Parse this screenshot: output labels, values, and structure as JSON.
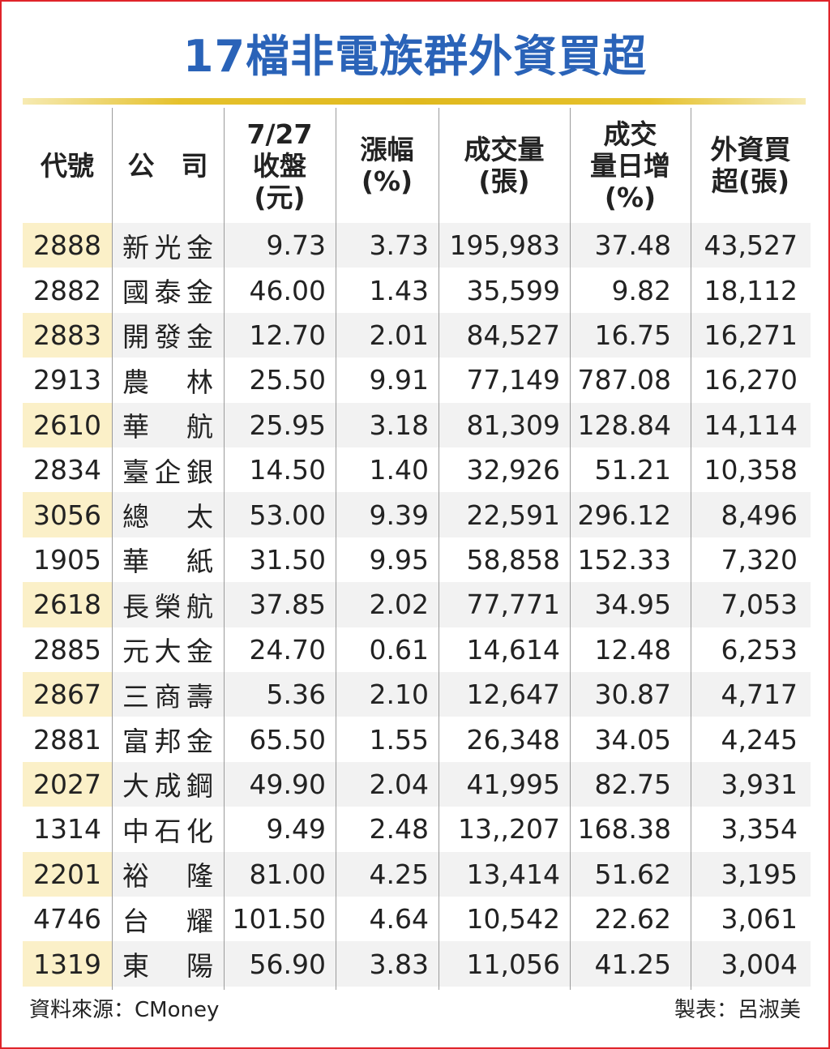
{
  "title": "17檔非電族群外資買超",
  "headers": [
    "代號",
    "公　司",
    "7/27\n收盤\n(元)",
    "漲幅\n(%)",
    "成交量\n(張)",
    "成交\n量日增\n(%)",
    "外資買\n超(張)"
  ],
  "rows": [
    [
      "2888",
      "新光金",
      "9.73",
      "3.73",
      "195,983",
      "37.48",
      "43,527"
    ],
    [
      "2882",
      "國泰金",
      "46.00",
      "1.43",
      "35,599",
      "9.82",
      "18,112"
    ],
    [
      "2883",
      "開發金",
      "12.70",
      "2.01",
      "84,527",
      "16.75",
      "16,271"
    ],
    [
      "2913",
      "農林",
      "25.50",
      "9.91",
      "77,149",
      "787.08",
      "16,270"
    ],
    [
      "2610",
      "華航",
      "25.95",
      "3.18",
      "81,309",
      "128.84",
      "14,114"
    ],
    [
      "2834",
      "臺企銀",
      "14.50",
      "1.40",
      "32,926",
      "51.21",
      "10,358"
    ],
    [
      "3056",
      "總太",
      "53.00",
      "9.39",
      "22,591",
      "296.12",
      "8,496"
    ],
    [
      "1905",
      "華紙",
      "31.50",
      "9.95",
      "58,858",
      "152.33",
      "7,320"
    ],
    [
      "2618",
      "長榮航",
      "37.85",
      "2.02",
      "77,771",
      "34.95",
      "7,053"
    ],
    [
      "2885",
      "元大金",
      "24.70",
      "0.61",
      "14,614",
      "12.48",
      "6,253"
    ],
    [
      "2867",
      "三商壽",
      "5.36",
      "2.10",
      "12,647",
      "30.87",
      "4,717"
    ],
    [
      "2881",
      "富邦金",
      "65.50",
      "1.55",
      "26,348",
      "34.05",
      "4,245"
    ],
    [
      "2027",
      "大成鋼",
      "49.90",
      "2.04",
      "41,995",
      "82.75",
      "3,931"
    ],
    [
      "1314",
      "中石化",
      "9.49",
      "2.48",
      "13,,207",
      "168.38",
      "3,354"
    ],
    [
      "2201",
      "裕隆",
      "81.00",
      "4.25",
      "13,414",
      "51.62",
      "3,195"
    ],
    [
      "4746",
      "台耀",
      "101.50",
      "4.64",
      "10,542",
      "22.62",
      "3,061"
    ],
    [
      "1319",
      "東陽",
      "56.90",
      "3.83",
      "11,056",
      "41.25",
      "3,004"
    ]
  ],
  "footer": {
    "source": "資料來源：CMoney",
    "author": "製表：呂淑美"
  },
  "colors": {
    "title": "#2a63b8",
    "border": "#e0242a",
    "gold_rule": "#e0b91e",
    "code_highlight": "#fbf0c8",
    "row_shade": "#f2f2f2"
  }
}
